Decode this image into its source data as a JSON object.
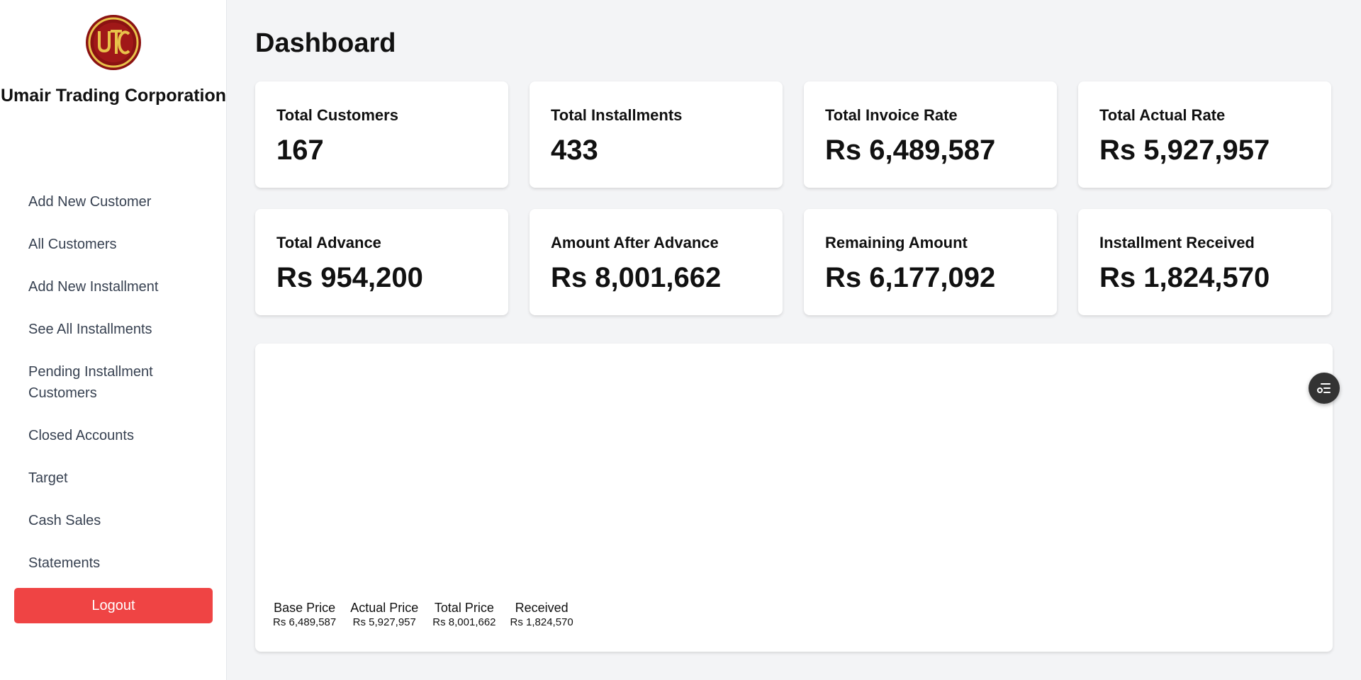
{
  "brand": {
    "logo_icon": "utc-logo",
    "name": "Umair Trading Corporation"
  },
  "sidebar": {
    "items": [
      {
        "label": "Add New Customer"
      },
      {
        "label": "All Customers"
      },
      {
        "label": "Add New Installment"
      },
      {
        "label": "See All Installments"
      },
      {
        "label": "Pending Installment Customers"
      },
      {
        "label": "Closed Accounts"
      },
      {
        "label": "Target"
      },
      {
        "label": "Cash Sales"
      },
      {
        "label": "Statements"
      }
    ],
    "logout_label": "Logout"
  },
  "page": {
    "title": "Dashboard"
  },
  "cards": [
    {
      "label": "Total Customers",
      "value": "167"
    },
    {
      "label": "Total Installments",
      "value": "433"
    },
    {
      "label": "Total Invoice Rate",
      "value": "Rs 6,489,587"
    },
    {
      "label": "Total Actual Rate",
      "value": "Rs 5,927,957"
    },
    {
      "label": "Total Advance",
      "value": "Rs 954,200"
    },
    {
      "label": "Amount After Advance",
      "value": "Rs 8,001,662"
    },
    {
      "label": "Remaining Amount",
      "value": "Rs 6,177,092"
    },
    {
      "label": "Installment Received",
      "value": "Rs 1,824,570"
    }
  ],
  "chart": {
    "legend": [
      {
        "label": "Base Price",
        "value": "Rs 6,489,587"
      },
      {
        "label": "Actual Price",
        "value": "Rs 5,927,957"
      },
      {
        "label": "Total Price",
        "value": "Rs 8,001,662"
      },
      {
        "label": "Received",
        "value": "Rs 1,824,570"
      }
    ]
  },
  "filter_button": {
    "icon": "filter-list-icon"
  },
  "colors": {
    "logout": "#ef4444",
    "logo_outer": "#8b1212",
    "logo_gold": "#e8c24a"
  }
}
